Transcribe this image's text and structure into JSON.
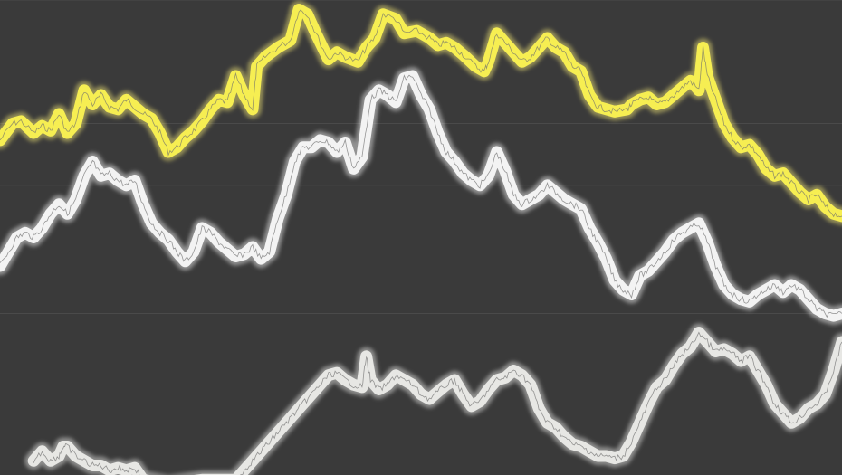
{
  "chart_data": {
    "type": "line",
    "title": "",
    "xlabel": "",
    "ylabel": "",
    "xlim": [
      0,
      100
    ],
    "ylim": [
      0,
      100
    ],
    "grid": true,
    "gridlines_y": [
      34,
      61,
      74,
      100
    ],
    "legend": "none",
    "colors": {
      "background": "#3a3a3a",
      "grid": "#4a4a4a",
      "series_trace": "#6e6e6e"
    },
    "series": [
      {
        "color": "#f6ee52",
        "glow": "#fff27a",
        "points": [
          [
            0,
            70.5
          ],
          [
            1.5,
            74
          ],
          [
            2.5,
            74.5
          ],
          [
            4,
            72
          ],
          [
            5,
            73.5
          ],
          [
            6,
            72.5
          ],
          [
            7,
            76
          ],
          [
            8,
            72
          ],
          [
            9,
            74
          ],
          [
            10,
            81
          ],
          [
            11,
            78
          ],
          [
            12,
            80
          ],
          [
            13,
            77.5
          ],
          [
            14,
            77
          ],
          [
            15,
            79
          ],
          [
            16,
            77.5
          ],
          [
            17,
            76
          ],
          [
            18,
            75
          ],
          [
            19,
            72
          ],
          [
            20,
            68
          ],
          [
            21,
            69
          ],
          [
            22,
            71
          ],
          [
            23,
            72.5
          ],
          [
            24,
            74.5
          ],
          [
            25,
            77
          ],
          [
            26,
            79
          ],
          [
            27,
            78.5
          ],
          [
            28,
            84
          ],
          [
            29,
            80
          ],
          [
            30,
            77
          ],
          [
            30.5,
            86
          ],
          [
            31.5,
            88
          ],
          [
            33,
            90
          ],
          [
            34.5,
            91.5
          ],
          [
            35.5,
            98
          ],
          [
            36.5,
            97
          ],
          [
            37.5,
            93
          ],
          [
            39,
            87.5
          ],
          [
            40,
            89
          ],
          [
            41,
            88
          ],
          [
            42.5,
            87
          ],
          [
            43.5,
            90
          ],
          [
            44.5,
            92
          ],
          [
            45.5,
            97
          ],
          [
            47,
            96
          ],
          [
            48,
            93
          ],
          [
            49.5,
            93.5
          ],
          [
            51,
            92
          ],
          [
            52,
            90.5
          ],
          [
            53,
            91
          ],
          [
            54,
            90
          ],
          [
            55,
            88.5
          ],
          [
            56.5,
            86
          ],
          [
            57.5,
            85
          ],
          [
            58,
            87
          ],
          [
            59,
            93
          ],
          [
            60,
            91
          ],
          [
            61,
            89
          ],
          [
            62,
            87
          ],
          [
            63,
            88
          ],
          [
            64,
            90
          ],
          [
            65,
            92
          ],
          [
            66,
            90
          ],
          [
            67,
            89
          ],
          [
            68,
            86
          ],
          [
            69,
            85
          ],
          [
            70,
            80
          ],
          [
            71,
            77.5
          ],
          [
            72,
            77
          ],
          [
            73,
            76.5
          ],
          [
            74.5,
            77
          ],
          [
            75,
            78
          ],
          [
            76,
            79
          ],
          [
            77,
            79.5
          ],
          [
            78,
            78
          ],
          [
            79,
            78.5
          ],
          [
            80,
            80
          ],
          [
            81,
            81.5
          ],
          [
            82,
            83
          ],
          [
            83,
            81
          ],
          [
            83.5,
            90
          ],
          [
            84,
            84
          ],
          [
            85,
            79
          ],
          [
            86,
            74
          ],
          [
            87,
            71
          ],
          [
            88,
            69
          ],
          [
            89,
            69.5
          ],
          [
            90,
            67.5
          ],
          [
            91,
            64.5
          ],
          [
            92,
            63
          ],
          [
            93,
            63.5
          ],
          [
            94,
            61.5
          ],
          [
            95,
            59.5
          ],
          [
            96,
            58
          ],
          [
            97,
            59
          ],
          [
            98,
            56.5
          ],
          [
            99,
            55
          ],
          [
            100,
            54.5
          ]
        ]
      },
      {
        "color": "#f3f3f3",
        "glow": "#ffffff",
        "points": [
          [
            0,
            44
          ],
          [
            1,
            47
          ],
          [
            2,
            50
          ],
          [
            3,
            51
          ],
          [
            4,
            50
          ],
          [
            5,
            52
          ],
          [
            6,
            55
          ],
          [
            7,
            57
          ],
          [
            8,
            55
          ],
          [
            9,
            58
          ],
          [
            10,
            63
          ],
          [
            11,
            66
          ],
          [
            12,
            63
          ],
          [
            13,
            63.5
          ],
          [
            14,
            62
          ],
          [
            15,
            61
          ],
          [
            16,
            62
          ],
          [
            17,
            57
          ],
          [
            18,
            53
          ],
          [
            19,
            51
          ],
          [
            20,
            49.5
          ],
          [
            21,
            47
          ],
          [
            22,
            45
          ],
          [
            23,
            47
          ],
          [
            24,
            52
          ],
          [
            25,
            51
          ],
          [
            26,
            49
          ],
          [
            27,
            47.5
          ],
          [
            28,
            46
          ],
          [
            29,
            46.5
          ],
          [
            30,
            48
          ],
          [
            31,
            45.5
          ],
          [
            32,
            47
          ],
          [
            33,
            54
          ],
          [
            34,
            59
          ],
          [
            35,
            66
          ],
          [
            36,
            69
          ],
          [
            37,
            69
          ],
          [
            38,
            70.5
          ],
          [
            39,
            70
          ],
          [
            40,
            68
          ],
          [
            41,
            70
          ],
          [
            42,
            64.5
          ],
          [
            43,
            67
          ],
          [
            44,
            79
          ],
          [
            45,
            81
          ],
          [
            46,
            80
          ],
          [
            47,
            78.5
          ],
          [
            48,
            83.5
          ],
          [
            49,
            84
          ],
          [
            50,
            80
          ],
          [
            51,
            77
          ],
          [
            52,
            72
          ],
          [
            53,
            68
          ],
          [
            54,
            66
          ],
          [
            55,
            63.5
          ],
          [
            56,
            62
          ],
          [
            57,
            61
          ],
          [
            58,
            63
          ],
          [
            59,
            68
          ],
          [
            60,
            64
          ],
          [
            61,
            59
          ],
          [
            62,
            57
          ],
          [
            63,
            58
          ],
          [
            64,
            59
          ],
          [
            65,
            61
          ],
          [
            66,
            59.5
          ],
          [
            67,
            58
          ],
          [
            68,
            57
          ],
          [
            69,
            56
          ],
          [
            70,
            52
          ],
          [
            71,
            49
          ],
          [
            72,
            45.5
          ],
          [
            73,
            41
          ],
          [
            74,
            39
          ],
          [
            75,
            38
          ],
          [
            76,
            42
          ],
          [
            77,
            43
          ],
          [
            78,
            45
          ],
          [
            79,
            47
          ],
          [
            80,
            49.5
          ],
          [
            81,
            51
          ],
          [
            82,
            52
          ],
          [
            83,
            53
          ],
          [
            84,
            49
          ],
          [
            85,
            44
          ],
          [
            86,
            40
          ],
          [
            87,
            38
          ],
          [
            88,
            37
          ],
          [
            89,
            36.5
          ],
          [
            90,
            38
          ],
          [
            91,
            39
          ],
          [
            92,
            40
          ],
          [
            93,
            38.5
          ],
          [
            94,
            40
          ],
          [
            95,
            39
          ],
          [
            96,
            37
          ],
          [
            97,
            35
          ],
          [
            98,
            34
          ],
          [
            99,
            33.5
          ],
          [
            100,
            34
          ]
        ]
      },
      {
        "color": "#e7e7e4",
        "glow": "#f4f4f2",
        "points": [
          [
            4,
            3
          ],
          [
            5,
            5
          ],
          [
            6,
            3
          ],
          [
            7,
            4
          ],
          [
            7.5,
            6
          ],
          [
            8,
            6
          ],
          [
            9,
            4
          ],
          [
            10,
            3
          ],
          [
            11,
            2
          ],
          [
            12,
            2
          ],
          [
            13,
            1
          ],
          [
            14,
            1.5
          ],
          [
            15,
            1
          ],
          [
            16,
            1.5
          ],
          [
            17,
            -1
          ],
          [
            20,
            -2
          ],
          [
            24,
            -1
          ],
          [
            28,
            -1
          ],
          [
            29,
            1
          ],
          [
            30,
            3
          ],
          [
            31,
            5
          ],
          [
            32,
            7
          ],
          [
            33,
            9
          ],
          [
            34,
            11
          ],
          [
            35,
            13
          ],
          [
            36,
            15
          ],
          [
            37,
            17
          ],
          [
            38,
            19
          ],
          [
            39,
            21
          ],
          [
            40,
            21.5
          ],
          [
            41,
            20
          ],
          [
            42,
            19
          ],
          [
            43,
            18.5
          ],
          [
            43.5,
            25
          ],
          [
            44,
            20
          ],
          [
            45,
            18
          ],
          [
            46,
            19
          ],
          [
            47,
            21
          ],
          [
            48,
            20
          ],
          [
            49,
            19
          ],
          [
            50,
            17
          ],
          [
            51,
            16
          ],
          [
            52,
            17.5
          ],
          [
            53,
            19
          ],
          [
            54,
            20
          ],
          [
            55,
            17
          ],
          [
            56,
            14.5
          ],
          [
            57,
            15.5
          ],
          [
            58,
            18
          ],
          [
            59,
            20
          ],
          [
            60,
            20.5
          ],
          [
            61,
            22
          ],
          [
            62,
            21
          ],
          [
            63,
            19
          ],
          [
            64,
            14
          ],
          [
            65,
            11
          ],
          [
            66,
            10
          ],
          [
            67,
            8
          ],
          [
            68,
            6.5
          ],
          [
            69,
            6
          ],
          [
            70,
            5
          ],
          [
            71,
            4
          ],
          [
            72,
            4
          ],
          [
            73,
            3.5
          ],
          [
            74,
            4
          ],
          [
            75,
            7
          ],
          [
            76,
            11
          ],
          [
            77,
            15
          ],
          [
            78,
            18.5
          ],
          [
            79,
            20
          ],
          [
            80,
            23
          ],
          [
            81,
            25.5
          ],
          [
            82,
            27
          ],
          [
            83,
            30
          ],
          [
            84,
            28
          ],
          [
            85,
            26
          ],
          [
            86,
            26.5
          ],
          [
            87,
            25.5
          ],
          [
            88,
            24
          ],
          [
            89,
            25
          ],
          [
            90,
            22
          ],
          [
            91,
            19
          ],
          [
            92,
            15
          ],
          [
            93,
            13
          ],
          [
            94,
            11
          ],
          [
            95,
            12
          ],
          [
            96,
            14
          ],
          [
            97,
            15
          ],
          [
            98,
            17
          ],
          [
            99,
            22
          ],
          [
            100,
            28
          ]
        ]
      }
    ]
  }
}
